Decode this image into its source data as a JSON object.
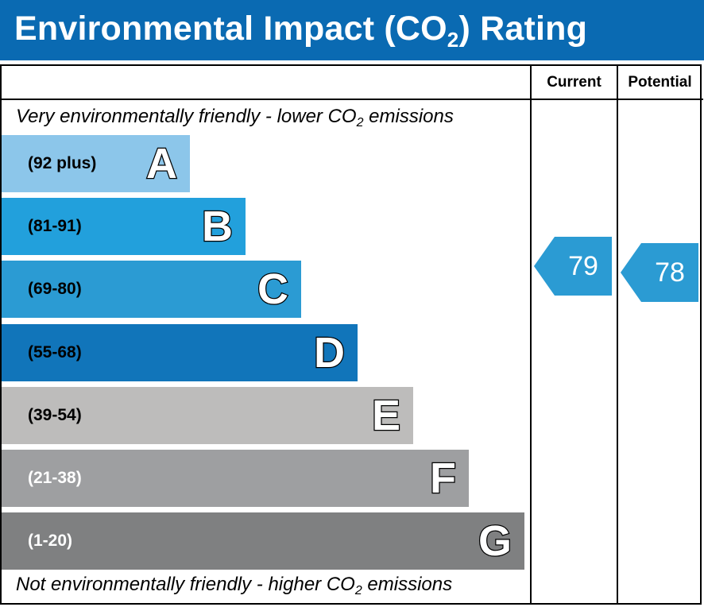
{
  "header": {
    "title_prefix": "Environmental Impact (CO",
    "title_sub": "2",
    "title_suffix": ") Rating"
  },
  "columns": {
    "current": "Current",
    "potential": "Potential"
  },
  "captions": {
    "top_prefix": "Very environmentally friendly - lower CO",
    "top_sub": "2",
    "top_suffix": " emissions",
    "bottom_prefix": "Not environmentally friendly - higher CO",
    "bottom_sub": "2",
    "bottom_suffix": " emissions"
  },
  "chart_data": {
    "type": "bar",
    "categories": [
      "A",
      "B",
      "C",
      "D",
      "E",
      "F",
      "G"
    ],
    "ranges": [
      "(92 plus)",
      "(81-91)",
      "(69-80)",
      "(55-68)",
      "(39-54)",
      "(21-38)",
      "(1-20)"
    ],
    "colors": [
      "#8cc6ea",
      "#22a0dc",
      "#2b9bd3",
      "#1175ba",
      "#bdbcbb",
      "#9e9fa1",
      "#7f8081"
    ],
    "range_text_colors": [
      "#000000",
      "#000000",
      "#000000",
      "#000000",
      "#000000",
      "#ffffff",
      "#ffffff"
    ],
    "current": {
      "value": 79,
      "band": "C",
      "color": "#2b9bd3"
    },
    "potential": {
      "value": 78,
      "band": "C",
      "color": "#2b9bd3"
    }
  }
}
